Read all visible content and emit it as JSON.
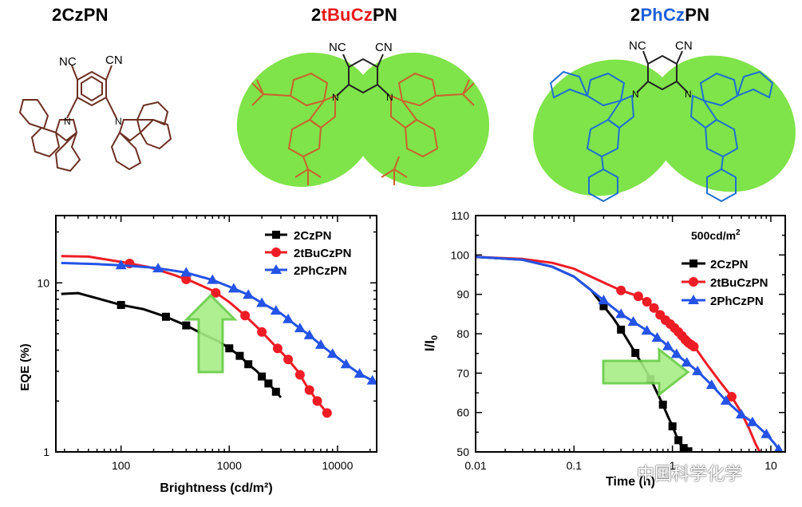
{
  "molecules": [
    {
      "name_parts": [
        {
          "text": "2"
        },
        {
          "text": "CzPN"
        }
      ],
      "colors": [
        "#000000",
        "#000000"
      ]
    },
    {
      "name_parts": [
        {
          "text": "2"
        },
        {
          "text": "tBuCz"
        },
        {
          "text": "PN"
        }
      ],
      "colors": [
        "#000000",
        "#e8191c",
        "#000000"
      ]
    },
    {
      "name_parts": [
        {
          "text": "2"
        },
        {
          "text": "PhCz"
        },
        {
          "text": "PN"
        }
      ],
      "colors": [
        "#000000",
        "#1f5fd8",
        "#000000"
      ]
    }
  ],
  "mol_labels": {
    "cn1": "NC",
    "cn2": "CN",
    "n": "N"
  },
  "colors": {
    "czpn": "#000000",
    "tbu": "#ee1c25",
    "ph": "#2453e6",
    "green_blob": "#7fe34a",
    "arrow": "#a8ee86",
    "arrow_edge": "#66cc44",
    "mol1_line": "#6b2f22",
    "mol2_line": "#c9622a",
    "mol3_line": "#1f6fd0"
  },
  "watermark": "中国科学化学",
  "chart_data": [
    {
      "type": "line",
      "xscale": "log",
      "yscale": "log",
      "xlabel": "Brightness (cd/m²)",
      "ylabel": "EQE (%)",
      "xlim": [
        25,
        23000
      ],
      "ylim": [
        1,
        25
      ],
      "xticks": [
        100,
        1000,
        10000
      ],
      "xticklabels": [
        "100",
        "1000",
        "10000"
      ],
      "yticks": [
        1,
        10
      ],
      "yticklabels": [
        "1",
        "10"
      ],
      "legend_position": "top-right",
      "series": [
        {
          "name": "2CzPN",
          "color": "#000000",
          "marker": "square",
          "x": [
            28,
            40,
            60,
            100,
            160,
            260,
            400,
            600,
            800,
            1000,
            1250,
            1500,
            1800,
            2100,
            2500,
            3000
          ],
          "y": [
            8.6,
            8.7,
            8.1,
            7.4,
            7.0,
            6.3,
            5.6,
            4.9,
            4.5,
            4.1,
            3.7,
            3.3,
            3.0,
            2.7,
            2.4,
            2.1
          ],
          "marker_x": [
            100,
            260,
            400,
            1000,
            1250,
            1500,
            2000,
            2300,
            2700
          ]
        },
        {
          "name": "2tBuCzPN",
          "color": "#ee1c25",
          "marker": "circle",
          "x": [
            28,
            50,
            100,
            180,
            300,
            450,
            700,
            1000,
            1400,
            1900,
            2600,
            3400,
            4300,
            5300,
            6500,
            8000
          ],
          "y": [
            14.4,
            14.3,
            13.3,
            12.4,
            11.2,
            10.2,
            9.0,
            7.7,
            6.4,
            5.3,
            4.3,
            3.6,
            3.0,
            2.4,
            2.0,
            1.7
          ],
          "marker_x": [
            120,
            400,
            750,
            1400,
            2000,
            2800,
            3500,
            4500,
            5500,
            6500,
            8000
          ]
        },
        {
          "name": "2PhCzPN",
          "color": "#2453e6",
          "marker": "triangle",
          "x": [
            28,
            60,
            100,
            200,
            400,
            700,
            1000,
            1500,
            2000,
            3000,
            4000,
            5500,
            7000,
            9000,
            12000,
            16000,
            22000
          ],
          "y": [
            13.1,
            12.9,
            12.7,
            12.3,
            11.5,
            10.4,
            9.5,
            8.5,
            7.6,
            6.6,
            5.7,
            4.9,
            4.3,
            3.8,
            3.3,
            2.9,
            2.6
          ],
          "marker_x": [
            100,
            220,
            400,
            700,
            1100,
            1500,
            2000,
            2700,
            3500,
            4500,
            5500,
            7000,
            9000,
            12000,
            16000,
            21000
          ]
        }
      ]
    },
    {
      "type": "line",
      "xscale": "log",
      "yscale": "linear",
      "xlabel": "Time (h)",
      "ylabel": "I/I₀",
      "xlim": [
        0.01,
        14
      ],
      "ylim": [
        50,
        110
      ],
      "xticks": [
        0.01,
        0.1,
        1,
        10
      ],
      "xticklabels": [
        "0.01",
        "0.1",
        "1",
        "10"
      ],
      "yticks": [
        50,
        60,
        70,
        80,
        90,
        100,
        110
      ],
      "yticklabels": [
        "50",
        "60",
        "70",
        "80",
        "90",
        "100",
        "110"
      ],
      "annotation": "500cd/m²",
      "legend_position": "center-right",
      "series": [
        {
          "name": "2CzPN",
          "color": "#000000",
          "marker": "square",
          "x": [
            0.01,
            0.03,
            0.06,
            0.1,
            0.15,
            0.2,
            0.25,
            0.32,
            0.4,
            0.5,
            0.6,
            0.7,
            0.8,
            0.9,
            1.0,
            1.1,
            1.2,
            1.35,
            1.5
          ],
          "y": [
            99.5,
            98.8,
            97.0,
            94.5,
            91.0,
            87.0,
            84.0,
            80.0,
            76.0,
            72.0,
            68.5,
            65.0,
            62.0,
            59.0,
            56.5,
            54.0,
            52.0,
            50.5,
            50.0
          ],
          "marker_x": [
            0.2,
            0.3,
            0.42,
            0.6,
            0.8,
            1.0,
            1.15,
            1.3,
            1.45
          ]
        },
        {
          "name": "2tBuCzPN",
          "color": "#ee1c25",
          "marker": "circle",
          "x": [
            0.01,
            0.03,
            0.06,
            0.1,
            0.2,
            0.3,
            0.45,
            0.6,
            0.8,
            1.0,
            1.2,
            1.4,
            1.7,
            2.2,
            3.0,
            4.0,
            5.0,
            6.0,
            7.0,
            7.7
          ],
          "y": [
            99.5,
            99.0,
            98.0,
            96.5,
            93.0,
            91.0,
            89.5,
            87.5,
            84.0,
            82.0,
            80.0,
            78.0,
            76.5,
            72.5,
            68.0,
            64.0,
            60.0,
            56.0,
            52.0,
            50.0
          ],
          "marker_x": [
            0.3,
            0.45,
            0.55,
            0.65,
            0.75,
            0.85,
            0.95,
            1.05,
            1.15,
            1.25,
            1.35,
            1.45,
            1.55,
            1.65,
            4.0
          ]
        },
        {
          "name": "2PhCzPN",
          "color": "#2453e6",
          "marker": "triangle",
          "x": [
            0.01,
            0.03,
            0.06,
            0.1,
            0.2,
            0.3,
            0.5,
            0.8,
            1.2,
            1.8,
            2.5,
            3.5,
            5.0,
            7.0,
            9.0,
            11.0,
            12.5
          ],
          "y": [
            99.5,
            98.8,
            97.0,
            94.5,
            88.5,
            85.0,
            81.5,
            78.0,
            74.0,
            70.5,
            67.0,
            63.0,
            59.5,
            57.0,
            54.5,
            52.0,
            50.0
          ],
          "marker_x": [
            0.2,
            0.3,
            0.4,
            0.55,
            0.7,
            0.9,
            1.1,
            1.4,
            1.8,
            2.5,
            3.5,
            5.0,
            6.5,
            9.0,
            12.0
          ]
        }
      ]
    }
  ]
}
